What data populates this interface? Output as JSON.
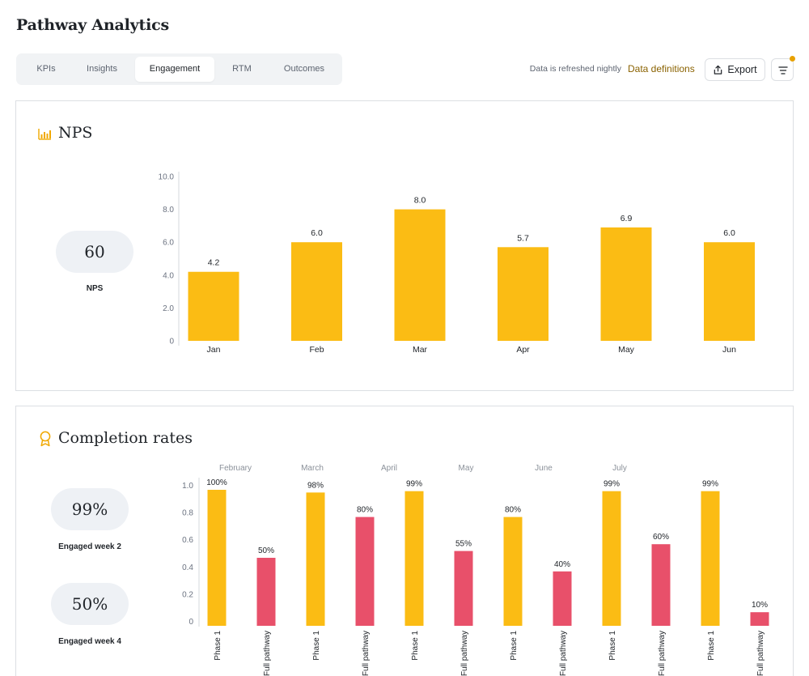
{
  "page_title": "Pathway Analytics",
  "tabs": [
    {
      "label": "KPIs"
    },
    {
      "label": "Insights"
    },
    {
      "label": "Engagement"
    },
    {
      "label": "RTM"
    },
    {
      "label": "Outcomes"
    }
  ],
  "active_tab": "Engagement",
  "toolbar": {
    "refresh_note": "Data is refreshed nightly",
    "data_definitions": "Data definitions",
    "export_label": "Export",
    "filter_icon": "filter-lines-icon",
    "filter_indicator_color": "#e8a100"
  },
  "colors": {
    "accent_yellow": "#fbbc14",
    "accent_red": "#e8506a",
    "link_gold": "#8a6200"
  },
  "nps_card": {
    "title": "NPS",
    "icon": "bar-chart-icon",
    "kpi_value": "60",
    "kpi_label": "NPS"
  },
  "completion_card": {
    "title": "Completion rates",
    "icon": "award-ribbon-icon",
    "kpis": [
      {
        "value": "99%",
        "label": "Engaged week 2"
      },
      {
        "value": "50%",
        "label": "Engaged week 4"
      }
    ]
  },
  "chart_data": [
    {
      "type": "bar",
      "title": "NPS",
      "categories": [
        "Jan",
        "Feb",
        "Mar",
        "Apr",
        "May",
        "Jun"
      ],
      "values": [
        4.2,
        6.0,
        8.0,
        5.7,
        6.9,
        6.0
      ],
      "data_labels": [
        "4.2",
        "6.0",
        "8.0",
        "5.7",
        "6.9",
        "6.0"
      ],
      "ylim": [
        0,
        10
      ],
      "yticks": [
        "0",
        "2.0",
        "4.0",
        "6.0",
        "8.0",
        "10.0"
      ],
      "color": "#fbbc14",
      "grid": false
    },
    {
      "type": "bar",
      "title": "Completion rates",
      "groups": [
        "February",
        "March",
        "April",
        "May",
        "June",
        "July"
      ],
      "categories": [
        "Phase 1",
        "Full pathway",
        "Phase 1",
        "Full pathway",
        "Phase 1",
        "Full pathway",
        "Phase 1",
        "Full pathway",
        "Phase 1",
        "Full pathway",
        "Phase 1",
        "Full pathway"
      ],
      "values": [
        1.0,
        0.5,
        0.98,
        0.8,
        0.99,
        0.55,
        0.8,
        0.4,
        0.99,
        0.6,
        0.99,
        0.1
      ],
      "data_labels": [
        "100%",
        "50%",
        "98%",
        "80%",
        "99%",
        "55%",
        "80%",
        "40%",
        "99%",
        "60%",
        "99%",
        "10%"
      ],
      "ylim": [
        0,
        1.0
      ],
      "yticks": [
        "0",
        "0.2",
        "0.4",
        "0.6",
        "0.8",
        "1.0"
      ],
      "colors": [
        "#fbbc14",
        "#e8506a"
      ],
      "grid": false
    }
  ]
}
